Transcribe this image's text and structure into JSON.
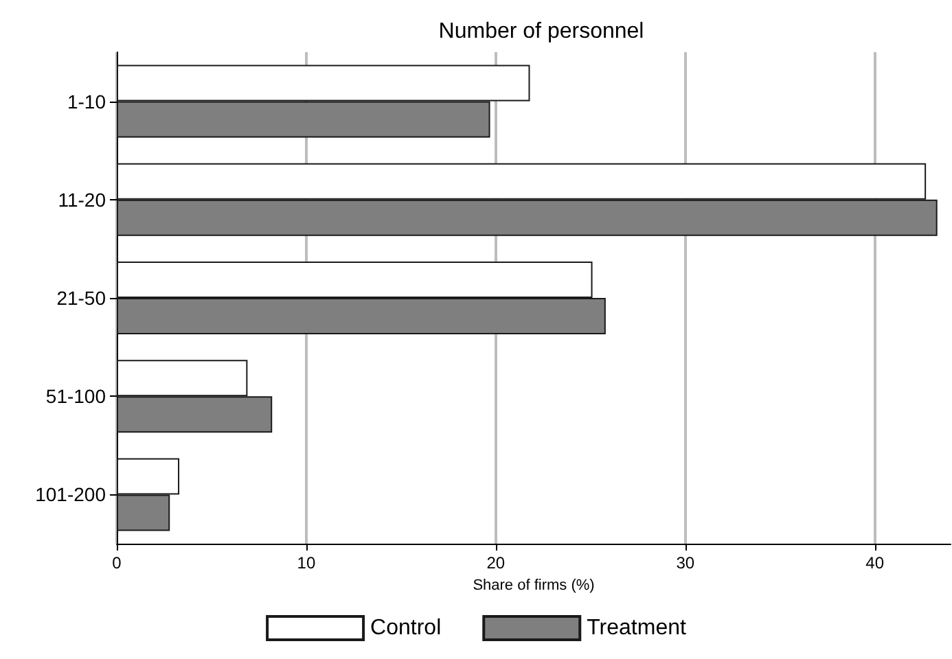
{
  "chart_data": {
    "type": "bar",
    "orientation": "horizontal",
    "title": "Number of personnel",
    "xlabel": "Share of firms (%)",
    "categories": [
      "1-10",
      "11-20",
      "21-50",
      "51-100",
      "101-200"
    ],
    "series": [
      {
        "name": "Control",
        "color": "#ffffff",
        "values": [
          21.8,
          42.7,
          25.1,
          6.9,
          3.3
        ]
      },
      {
        "name": "Treatment",
        "color": "#7f7f7f",
        "values": [
          19.7,
          43.3,
          25.8,
          8.2,
          2.8
        ]
      }
    ],
    "xlim": [
      0,
      44
    ],
    "xticks": [
      0,
      10,
      20,
      30,
      40
    ],
    "grid": "x",
    "legend": "bottom"
  }
}
